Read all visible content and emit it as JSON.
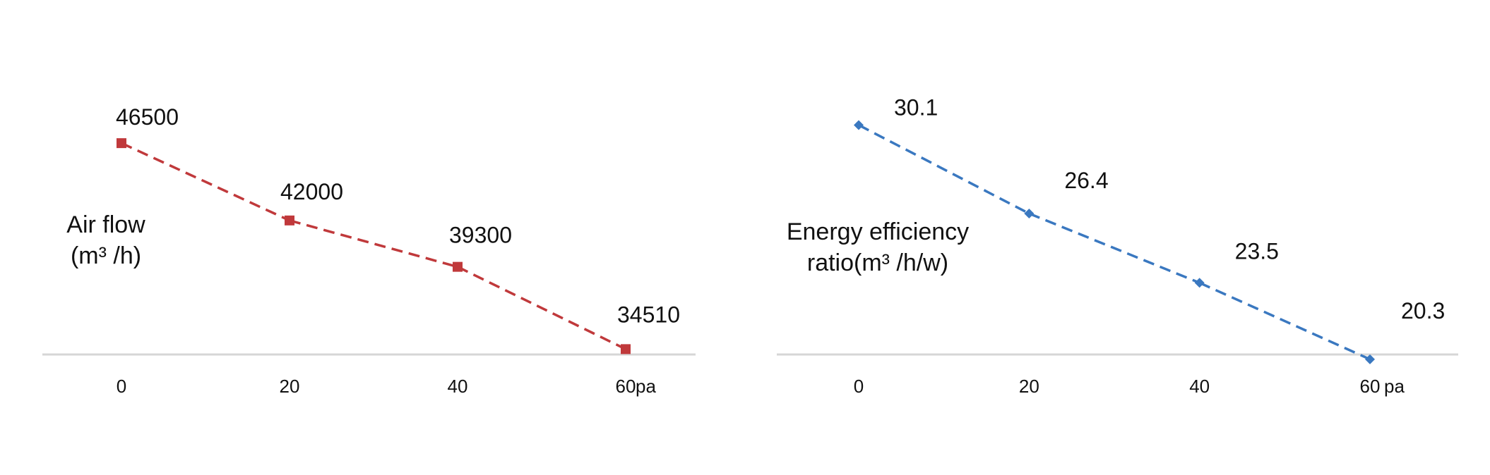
{
  "chart_data": [
    {
      "type": "line",
      "ylabel_lines": [
        "Air flow",
        "(m³ /h)"
      ],
      "xunit": "pa",
      "categories": [
        "0",
        "20",
        "40",
        "60"
      ],
      "x": [
        0,
        20,
        40,
        60
      ],
      "series": [
        {
          "values": [
            46500,
            42000,
            39300,
            34510
          ],
          "labels": [
            "46500",
            "42000",
            "39300",
            "34510"
          ],
          "color": "#c0393b",
          "marker": "square",
          "line_style": "dashed"
        }
      ],
      "ylim": [
        33500,
        49500
      ],
      "grid": false
    },
    {
      "type": "line",
      "ylabel_lines": [
        "Energy efficiency",
        "ratio(m³ /h/w)"
      ],
      "xunit": "pa",
      "categories": [
        "0",
        "20",
        "40",
        "60"
      ],
      "x": [
        0,
        20,
        40,
        60
      ],
      "series": [
        {
          "values": [
            30.1,
            26.4,
            23.5,
            20.3
          ],
          "labels": [
            "30.1",
            "26.4",
            "23.5",
            "20.3"
          ],
          "color": "#3a78c0",
          "marker": "diamond",
          "line_style": "dashed"
        }
      ],
      "ylim": [
        20.0,
        31.5
      ],
      "grid": false
    }
  ]
}
